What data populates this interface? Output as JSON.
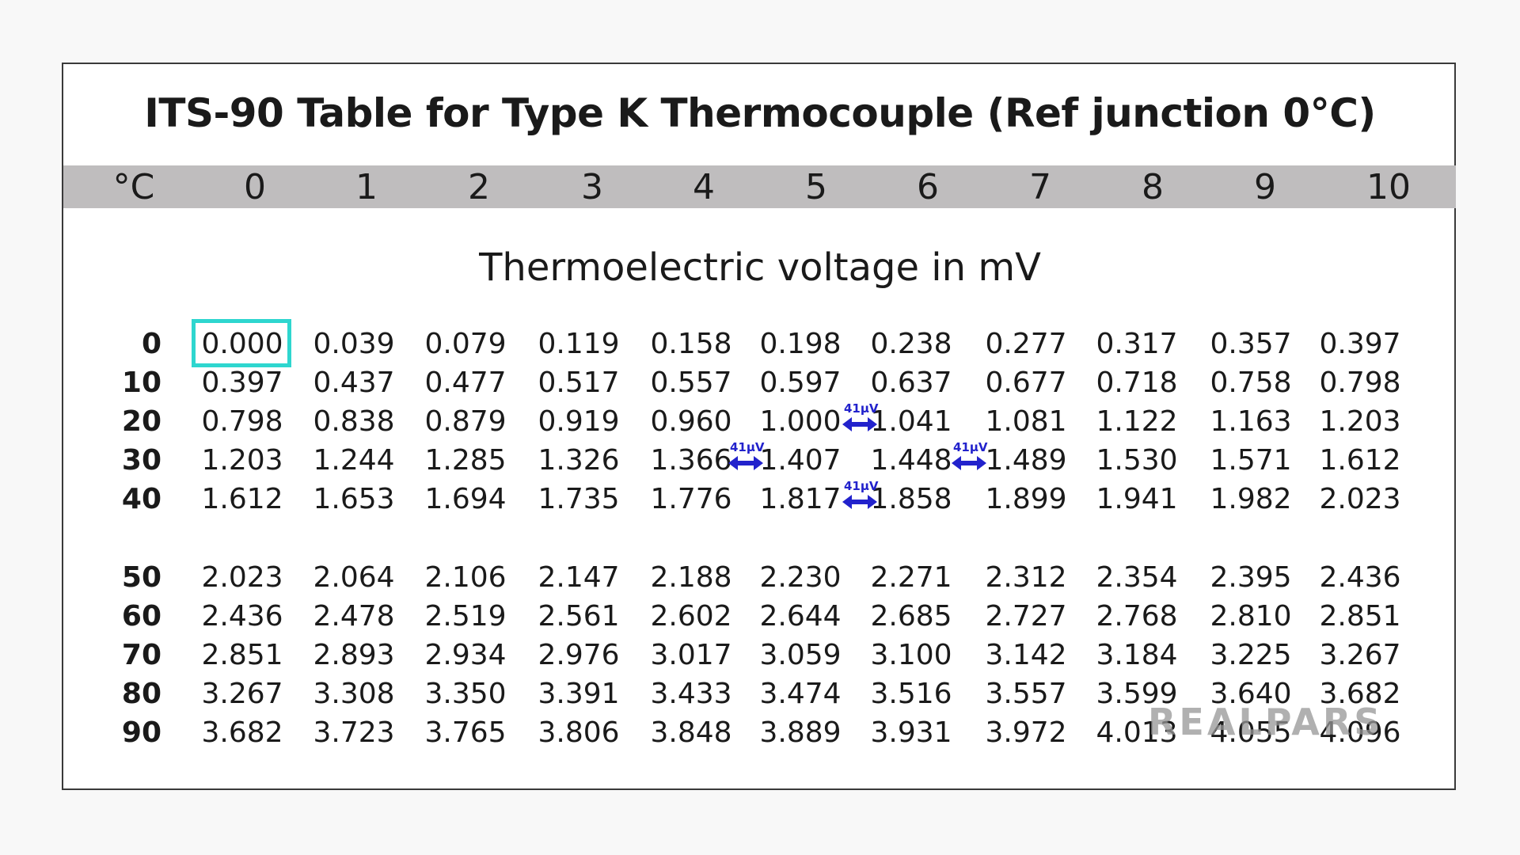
{
  "title": "ITS-90 Table for Type K Thermocouple (Ref junction 0°C)",
  "subtitle": "Thermoelectric voltage in mV",
  "header": {
    "unit": "°C",
    "columns": [
      "0",
      "1",
      "2",
      "3",
      "4",
      "5",
      "6",
      "7",
      "8",
      "9",
      "10"
    ]
  },
  "rows": [
    {
      "label": "0",
      "values": [
        "0.000",
        "0.039",
        "0.079",
        "0.119",
        "0.158",
        "0.198",
        "0.238",
        "0.277",
        "0.317",
        "0.357",
        "0.397"
      ]
    },
    {
      "label": "10",
      "values": [
        "0.397",
        "0.437",
        "0.477",
        "0.517",
        "0.557",
        "0.597",
        "0.637",
        "0.677",
        "0.718",
        "0.758",
        "0.798"
      ]
    },
    {
      "label": "20",
      "values": [
        "0.798",
        "0.838",
        "0.879",
        "0.919",
        "0.960",
        "1.000",
        "1.041",
        "1.081",
        "1.122",
        "1.163",
        "1.203"
      ]
    },
    {
      "label": "30",
      "values": [
        "1.203",
        "1.244",
        "1.285",
        "1.326",
        "1.366",
        "1.407",
        "1.448",
        "1.489",
        "1.530",
        "1.571",
        "1.612"
      ]
    },
    {
      "label": "40",
      "values": [
        "1.612",
        "1.653",
        "1.694",
        "1.735",
        "1.776",
        "1.817",
        "1.858",
        "1.899",
        "1.941",
        "1.982",
        "2.023"
      ]
    },
    {
      "label": "50",
      "values": [
        "2.023",
        "2.064",
        "2.106",
        "2.147",
        "2.188",
        "2.230",
        "2.271",
        "2.312",
        "2.354",
        "2.395",
        "2.436"
      ]
    },
    {
      "label": "60",
      "values": [
        "2.436",
        "2.478",
        "2.519",
        "2.561",
        "2.602",
        "2.644",
        "2.685",
        "2.727",
        "2.768",
        "2.810",
        "2.851"
      ]
    },
    {
      "label": "70",
      "values": [
        "2.851",
        "2.893",
        "2.934",
        "2.976",
        "3.017",
        "3.059",
        "3.100",
        "3.142",
        "3.184",
        "3.225",
        "3.267"
      ]
    },
    {
      "label": "80",
      "values": [
        "3.267",
        "3.308",
        "3.350",
        "3.391",
        "3.433",
        "3.474",
        "3.516",
        "3.557",
        "3.599",
        "3.640",
        "3.682"
      ]
    },
    {
      "label": "90",
      "values": [
        "3.682",
        "3.723",
        "3.765",
        "3.806",
        "3.848",
        "3.889",
        "3.931",
        "3.972",
        "4.013",
        "4.055",
        "4.096"
      ]
    }
  ],
  "highlighted_cell": {
    "row": "0",
    "column": "0",
    "value": "0.000",
    "color": "#2ed6cf"
  },
  "annotations": [
    {
      "label": "41µV",
      "row": "20",
      "between": [
        "1.000",
        "1.041"
      ]
    },
    {
      "label": "41µV",
      "row": "30",
      "between": [
        "1.366",
        "1.407"
      ]
    },
    {
      "label": "41µV",
      "row": "30",
      "between": [
        "1.448",
        "1.489"
      ]
    },
    {
      "label": "41µV",
      "row": "40",
      "between": [
        "1.817",
        "1.858"
      ]
    }
  ],
  "annotation_color": "#2222cc",
  "watermark": "REALPARS"
}
